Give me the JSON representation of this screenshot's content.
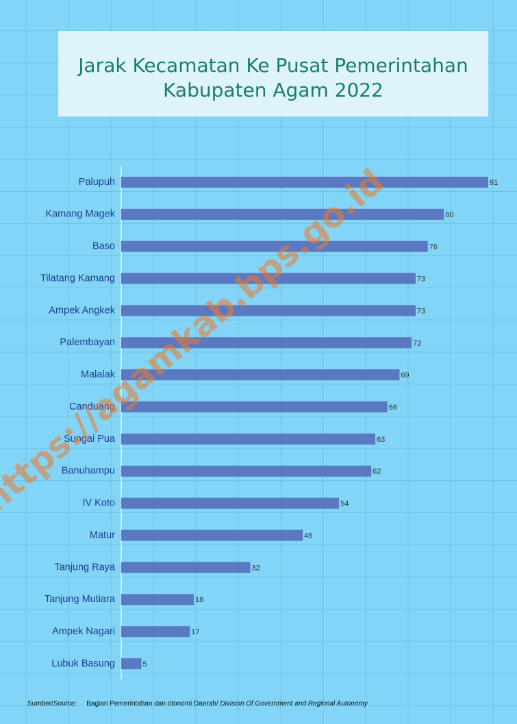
{
  "chart_data": {
    "type": "bar",
    "orientation": "horizontal",
    "title": [
      "Jarak Kecamatan Ke Pusat Pemerintahan",
      "Kabupaten Agam 2022"
    ],
    "categories": [
      "Palupuh",
      "Kamang Magek",
      "Baso",
      "Tilatang Kamang",
      "Ampek Angkek",
      "Palembayan",
      "Malalak",
      "Canduang",
      "Sungai Pua",
      "Banuhampu",
      "IV Koto",
      "Matur",
      "Tanjung Raya",
      "Tanjung Mutiara",
      "Ampek Nagari",
      "Lubuk Basung"
    ],
    "values": [
      91,
      80,
      76,
      73,
      73,
      72,
      69,
      66,
      63,
      62,
      54,
      45,
      32,
      18,
      17,
      5
    ],
    "color": "#5b78c2",
    "watermark": "https://agamkab.bps.go.id",
    "source": {
      "label": "Sumber/",
      "label_italic": "Source:",
      "text": "Bagian Pemerintahan dan otonomi Daerah/ ",
      "text_italic": "Division Of Government and Regional Autonomy"
    }
  }
}
